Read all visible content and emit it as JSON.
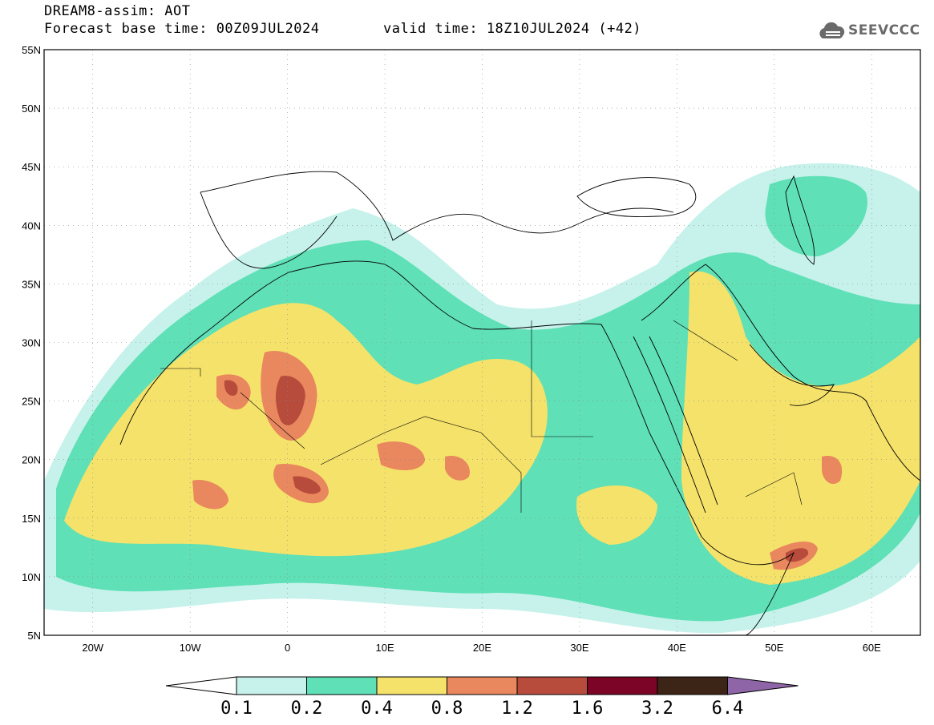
{
  "header": {
    "title": "DREAM8-assim: AOT",
    "base_time": "Forecast base time: 00Z09JUL2024",
    "valid_time": "valid time: 18Z10JUL2024 (+42)"
  },
  "logo": {
    "text": "SEEVCCC",
    "icon": "cloud-logo-icon",
    "color": "#6a6a6a"
  },
  "map": {
    "lat_ticks": [
      "55N",
      "50N",
      "45N",
      "40N",
      "35N",
      "30N",
      "25N",
      "20N",
      "15N",
      "10N",
      "5N"
    ],
    "lon_ticks": [
      "20W",
      "10W",
      "0",
      "10E",
      "20E",
      "30E",
      "40E",
      "50E",
      "60E"
    ],
    "lat_range": [
      5,
      55
    ],
    "lon_range": [
      -25,
      65
    ],
    "grid": "dotted"
  },
  "colorbar": {
    "labels": [
      "0.1",
      "0.2",
      "0.4",
      "0.8",
      "1.2",
      "1.6",
      "3.2",
      "6.4"
    ],
    "colors": [
      "#c6f2eb",
      "#5fe0b6",
      "#f5e26a",
      "#e9875e",
      "#b84c3c",
      "#7c0426",
      "#3c2417",
      "#8e66a8"
    ],
    "extend": "both"
  }
}
